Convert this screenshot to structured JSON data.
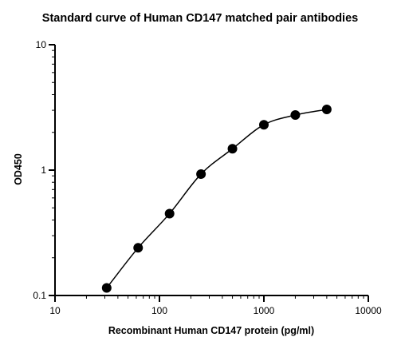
{
  "chart_data": {
    "type": "scatter",
    "title": "Standard curve of Human CD147 matched pair antibodies",
    "xlabel": "Recombinant Human CD147 protein (pg/ml)",
    "ylabel": "OD450",
    "x_scale": "log",
    "y_scale": "log",
    "xlim": [
      10,
      10000
    ],
    "ylim": [
      0.1,
      10
    ],
    "x_ticks": [
      "10",
      "100",
      "1000",
      "10000"
    ],
    "y_ticks": [
      "0.1",
      "1",
      "10"
    ],
    "grid": false,
    "legend": "none",
    "fit_curve": true,
    "marker_color": "#000000",
    "series": [
      {
        "x": [
          31.25,
          62.5,
          125,
          250,
          500,
          1000,
          2000,
          4000
        ],
        "y": [
          0.115,
          0.24,
          0.45,
          0.93,
          1.48,
          2.3,
          2.75,
          3.05
        ]
      }
    ]
  }
}
